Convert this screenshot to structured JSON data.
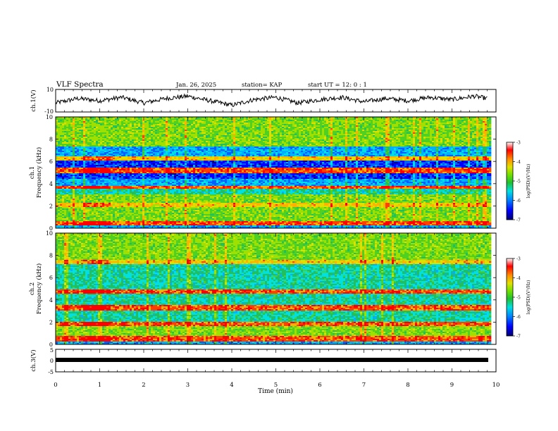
{
  "header": {
    "title": "VLF Spectra",
    "date": "Jan. 26, 2025",
    "station": "station= KAP",
    "start": "start UT =  12: 0  : 1"
  },
  "colorbar": {
    "label": "log(PSD)(V²/Hz)",
    "ticks": [
      "-3",
      "-4",
      "-5",
      "-6",
      "-7"
    ],
    "colormap": [
      "#000080",
      "#0000ff",
      "#0080ff",
      "#00e0e0",
      "#20c030",
      "#70e000",
      "#e0e000",
      "#ff9000",
      "#ff0000",
      "#ffffff"
    ]
  },
  "chart_data": [
    {
      "type": "line",
      "panel": "ch1-voltage",
      "ylabel": "ch.1(V)",
      "yticks": [
        "10",
        "-10"
      ],
      "ylim": [
        -10,
        10
      ],
      "xlim": [
        0,
        10
      ],
      "description_values": {
        "x_min": [
          0,
          0.5,
          1,
          1.5,
          2,
          2.5,
          3,
          3.5,
          4,
          4.5,
          5,
          5.5,
          6,
          6.5,
          7,
          7.5,
          8,
          8.5,
          9,
          9.5,
          9.8
        ],
        "y_V": [
          -2,
          2,
          0,
          3,
          -2,
          2,
          4,
          0,
          -4,
          1,
          3,
          -2,
          1,
          3,
          -1,
          2,
          0,
          3,
          1,
          4,
          2
        ]
      }
    },
    {
      "type": "heatmap",
      "panel": "ch1-spectrogram",
      "ylabel": "ch.1 Frequency (kHz)",
      "yticks": [
        "0",
        "2",
        "4",
        "6",
        "8",
        "10"
      ],
      "ylim": [
        0,
        10
      ],
      "xlim": [
        0,
        9.85
      ],
      "units": "kHz",
      "bands": [
        {
          "f0": 0.0,
          "f1": 0.3,
          "level": "low"
        },
        {
          "f0": 0.3,
          "f1": 0.6,
          "level": "high"
        },
        {
          "f0": 0.6,
          "f1": 1.9,
          "level": "mid"
        },
        {
          "f0": 1.9,
          "f1": 2.3,
          "level": "midhigh"
        },
        {
          "f0": 2.3,
          "f1": 3.1,
          "level": "mid"
        },
        {
          "f0": 3.1,
          "f1": 3.5,
          "level": "midlow"
        },
        {
          "f0": 3.5,
          "f1": 3.8,
          "level": "high"
        },
        {
          "f0": 3.8,
          "f1": 4.4,
          "level": "low"
        },
        {
          "f0": 4.4,
          "f1": 5.0,
          "level": "vlow"
        },
        {
          "f0": 5.0,
          "f1": 5.5,
          "level": "high"
        },
        {
          "f0": 5.5,
          "f1": 6.1,
          "level": "vlow"
        },
        {
          "f0": 6.1,
          "f1": 6.5,
          "level": "midhigh"
        },
        {
          "f0": 6.5,
          "f1": 7.4,
          "level": "low"
        },
        {
          "f0": 7.4,
          "f1": 10.0,
          "level": "mid"
        }
      ]
    },
    {
      "type": "heatmap",
      "panel": "ch2-spectrogram",
      "ylabel": "ch.2 Frequency (kHz)",
      "yticks": [
        "0",
        "2",
        "4",
        "6",
        "8",
        "10"
      ],
      "ylim": [
        0,
        10
      ],
      "xlim": [
        0,
        9.85
      ],
      "units": "kHz",
      "bands": [
        {
          "f0": 0.0,
          "f1": 0.3,
          "level": "low"
        },
        {
          "f0": 0.3,
          "f1": 0.7,
          "level": "high"
        },
        {
          "f0": 0.7,
          "f1": 1.6,
          "level": "mid"
        },
        {
          "f0": 1.6,
          "f1": 2.0,
          "level": "high"
        },
        {
          "f0": 2.0,
          "f1": 3.0,
          "level": "midlow"
        },
        {
          "f0": 3.0,
          "f1": 3.5,
          "level": "high"
        },
        {
          "f0": 3.5,
          "f1": 4.5,
          "level": "midlow"
        },
        {
          "f0": 4.5,
          "f1": 5.0,
          "level": "high"
        },
        {
          "f0": 5.0,
          "f1": 7.2,
          "level": "midlow"
        },
        {
          "f0": 7.2,
          "f1": 7.6,
          "level": "midhigh"
        },
        {
          "f0": 7.6,
          "f1": 10.0,
          "level": "mid"
        }
      ]
    },
    {
      "type": "line",
      "panel": "ch3-voltage",
      "ylabel": "ch.3(V)",
      "yticks": [
        "5",
        "0",
        "-5"
      ],
      "ylim": [
        -5,
        5
      ],
      "xlim": [
        0,
        10
      ],
      "description_values": {
        "x_min": [
          0,
          9.8
        ],
        "y_V": [
          -1,
          -1
        ]
      }
    }
  ],
  "xaxis": {
    "label": "Time (min)",
    "ticks": [
      "0",
      "1",
      "2",
      "3",
      "4",
      "5",
      "6",
      "7",
      "8",
      "9",
      "10"
    ]
  }
}
